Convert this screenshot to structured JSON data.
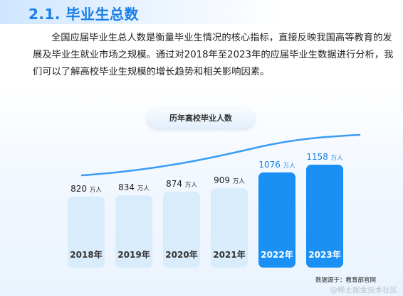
{
  "section": {
    "title": "2.1. 毕业生总数"
  },
  "paragraph": "全国应届毕业生总人数是衡量毕业生情况的核心指标，直接反映我国高等教育的发展及毕业生就业市场之规模。通过对2018年至2023年的应届毕业生数据进行分析，我们可以了解高校毕业生规模的增长趋势和相关影响因素。",
  "chart_data": {
    "type": "bar",
    "title": "历年高校毕业人数",
    "unit": "万人",
    "categories": [
      "2018年",
      "2019年",
      "2020年",
      "2021年",
      "2022年",
      "2023年"
    ],
    "values": [
      820,
      834,
      874,
      909,
      1076,
      1158
    ],
    "highlight": [
      false,
      false,
      false,
      false,
      true,
      true
    ],
    "colors": {
      "normal_bar": "#d9ecfb",
      "highlight_bar": "#1a90f4",
      "trend_line": "#3a9cf5"
    },
    "trend_line": true
  },
  "source_note": "数据源于：教育部官网",
  "watermark": "@稀土掘金技术社区"
}
